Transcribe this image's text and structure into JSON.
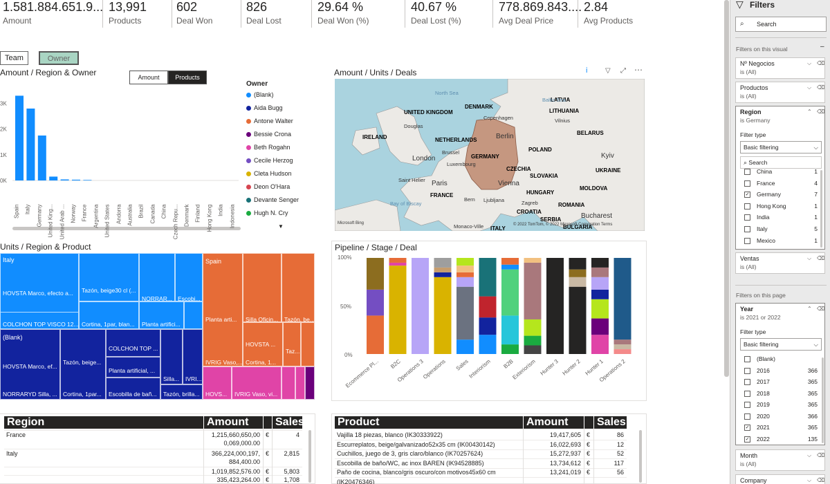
{
  "kpis": [
    {
      "value": "1.581.884.651.9...",
      "label": "Amount"
    },
    {
      "value": "13,991",
      "label": "Products"
    },
    {
      "value": "602",
      "label": "Deal Won"
    },
    {
      "value": "826",
      "label": "Deal Lost"
    },
    {
      "value": "29.64 %",
      "label": "Deal Won (%)"
    },
    {
      "value": "40.67 %",
      "label": "Deal Lost (%)"
    },
    {
      "value": "778.869.843....",
      "label": "Avg Deal Price"
    },
    {
      "value": "2.84",
      "label": "Avg Products"
    }
  ],
  "toggles": {
    "team": "Team",
    "owner": "Owner"
  },
  "bar_visual": {
    "title": "Amount / Region & Owner",
    "seg_amount": "Amount",
    "seg_products": "Products",
    "y_ticks": [
      "3K",
      "2K",
      "1K",
      "0K"
    ],
    "legend_title": "Owner",
    "legend": [
      {
        "name": "(Blank)",
        "color": "#118dff"
      },
      {
        "name": "Aida Bugg",
        "color": "#12239e"
      },
      {
        "name": "Antone Walter",
        "color": "#e66c37"
      },
      {
        "name": "Bessie Crona",
        "color": "#6b007b"
      },
      {
        "name": "Beth Rogahn",
        "color": "#e044a7"
      },
      {
        "name": "Cecile Herzog",
        "color": "#744ec2"
      },
      {
        "name": "Cleta Hudson",
        "color": "#d9b300"
      },
      {
        "name": "Deon O'Hara",
        "color": "#d64550"
      },
      {
        "name": "Devante Senger",
        "color": "#197278"
      },
      {
        "name": "Hugh N. Cry",
        "color": "#1aab40"
      }
    ]
  },
  "chart_data": {
    "type": "bar",
    "title": "Amount / Region & Owner",
    "xlabel": "",
    "ylabel": "",
    "ylim": [
      0,
      3500
    ],
    "categories": [
      "Spain",
      "Italy",
      "Germany",
      "United King...",
      "United Arab ...",
      "Norway",
      "France",
      "Argentina",
      "United States",
      "Andorra",
      "Australia",
      "Brazil",
      "Canada",
      "China",
      "Czech Repu...",
      "Denmark",
      "Finland",
      "Hong Kong",
      "India",
      "Indonesia"
    ],
    "values": [
      3300,
      2800,
      1750,
      150,
      40,
      30,
      20,
      0,
      0,
      0,
      0,
      0,
      0,
      0,
      0,
      0,
      0,
      0,
      0,
      0
    ]
  },
  "map_visual": {
    "title": "Amount / Units / Deals",
    "labels": [
      "North Sea",
      "UNITED KINGDOM",
      "Douglas",
      "DENMARK",
      "Copenhagen",
      "LATVIA",
      "LITHUANIA",
      "Vilnius",
      "IRELAND",
      "NETHERLANDS",
      "Berlin",
      "BELARUS",
      "Brussel",
      "Luxembourg",
      "GERMANY",
      "POLAND",
      "London",
      "Kyiv",
      "CZECHIA",
      "UKRAINE",
      "Saint Helier",
      "Paris",
      "SLOVAKIA",
      "Vienna",
      "MOLDOVA",
      "HUNGARY",
      "FRANCE",
      "Bern",
      "Ljubljana",
      "Zagreb",
      "ROMANIA",
      "Bay of Biscay",
      "CROATIA",
      "Bucharest",
      "SERBIA",
      "Monaco-Ville",
      "ITALY",
      "BULGARIA",
      "Baltic Sea"
    ],
    "copyright": "© 2022 TomTom, © 2022 Microsoft Corporation Terms",
    "brand": "Microsoft Bing"
  },
  "treemap": {
    "title": "Units / Region & Product",
    "italy": "Italy",
    "blank": "(Blank)",
    "spain": "Spain",
    "italy_items": [
      "HOVSTA Marco, efecto a...",
      "Tazón, beige30 cl (...",
      "NORRAR...",
      "Escobi...",
      "COLCHON TOP VISCO 12...",
      "Cortina, 1par, blan...",
      "Planta artifici..."
    ],
    "blank_items": [
      "HOVSTA Marco, ef...",
      "Tazón, beige...",
      "COLCHON TOP ...",
      "Planta artificial, ...",
      "Silla...",
      "IVRI...",
      "NORRARYD Silla, ...",
      "Cortina, 1par...",
      "Escobilla de bañ...",
      "Tazón, brilla..."
    ],
    "spain_items": [
      "Planta arti...",
      "Silla Oficin...",
      "Tazón, be...",
      "HOVSTA ...",
      "Taz...",
      "IVRIG Vaso,...",
      "Cortina, 1..."
    ],
    "pink_items": [
      "HOVS...",
      "IVRIG Vaso, vi..."
    ]
  },
  "pipeline": {
    "title": "Pipeline / Stage / Deal",
    "y_ticks": [
      "100%",
      "50%",
      "0%"
    ],
    "categories": [
      "Ecommerce Pl...",
      "B2C",
      "Operations 3",
      "Operations",
      "Sales",
      "Interiorism",
      "B2B",
      "Exteriorism",
      "Hunter 3",
      "Hunter 2",
      "Hunter 1",
      "Operations 2"
    ]
  },
  "region_table": {
    "headers": [
      "Region",
      "Amount",
      "Sales"
    ],
    "rows": [
      {
        "region": "France",
        "amount": "1,215,660,650,00",
        "amount2": "0,069,000.00",
        "cur": "€",
        "sales": "4"
      },
      {
        "region": "Italy",
        "amount": "366,224,000,197,",
        "amount2": "884,400.00",
        "cur": "€",
        "sales": "2,815"
      },
      {
        "region": "",
        "amount": "1,019,852,576.00",
        "amount2": "",
        "cur": "€",
        "sales": "5,803"
      },
      {
        "region": "",
        "amount": "335,423,264.00",
        "amount2": "",
        "cur": "€",
        "sales": "1,708"
      }
    ]
  },
  "product_table": {
    "headers": [
      "Product",
      "Amount",
      "Sales"
    ],
    "rows": [
      {
        "product": "Vajilla 18 piezas, blanco (IK30333922)",
        "amount": "19,417,605",
        "cur": "€",
        "sales": "86"
      },
      {
        "product": "Escurreplatos, beige/galvanizado52x35 cm (IK00430142)",
        "amount": "16,022,693",
        "cur": "€",
        "sales": "12"
      },
      {
        "product": "Cuchillos, juego de 3, gris claro/blanco (IK70257624)",
        "amount": "15,272,937",
        "cur": "€",
        "sales": "52"
      },
      {
        "product": "Escobilla de baño/WC, ac inox BAREN (IK94528885)",
        "amount": "13,734,612",
        "cur": "€",
        "sales": "117"
      },
      {
        "product": "Paño de cocina, blanco/gris oscuro/con motivos45x60 cm",
        "amount": "13,241,019",
        "cur": "€",
        "sales": "56"
      },
      {
        "product": "(IK20476346)",
        "amount": "",
        "cur": "",
        "sales": ""
      }
    ]
  },
  "filters": {
    "title": "Filters",
    "search": "Search",
    "on_visual": "Filters on this visual",
    "cards": [
      {
        "name": "Nº Negocios",
        "state": "is (All)"
      },
      {
        "name": "Productos",
        "state": "is (All)"
      }
    ],
    "region": {
      "name": "Region",
      "state": "is Germany",
      "filter_type_label": "Filter type",
      "filter_type": "Basic filtering",
      "search": "Search",
      "items": [
        {
          "label": "China",
          "count": "1",
          "checked": ""
        },
        {
          "label": "France",
          "count": "4",
          "checked": ""
        },
        {
          "label": "Germany",
          "count": "7",
          "checked": "✓"
        },
        {
          "label": "Hong Kong",
          "count": "1",
          "checked": ""
        },
        {
          "label": "India",
          "count": "1",
          "checked": ""
        },
        {
          "label": "Italy",
          "count": "5",
          "checked": ""
        },
        {
          "label": "Mexico",
          "count": "1",
          "checked": ""
        }
      ]
    },
    "ventas": {
      "name": "Ventas",
      "state": "is (All)"
    },
    "on_page": "Filters on this page",
    "year": {
      "name": "Year",
      "state": "is 2021 or 2022",
      "filter_type_label": "Filter type",
      "filter_type": "Basic filtering",
      "items": [
        {
          "label": "(Blank)",
          "count": "",
          "checked": ""
        },
        {
          "label": "2016",
          "count": "366",
          "checked": ""
        },
        {
          "label": "2017",
          "count": "365",
          "checked": ""
        },
        {
          "label": "2018",
          "count": "365",
          "checked": ""
        },
        {
          "label": "2019",
          "count": "365",
          "checked": ""
        },
        {
          "label": "2020",
          "count": "366",
          "checked": ""
        },
        {
          "label": "2021",
          "count": "365",
          "checked": "✓"
        },
        {
          "label": "2022",
          "count": "135",
          "checked": "✓"
        }
      ]
    },
    "month": {
      "name": "Month",
      "state": "is (All)"
    },
    "company": {
      "name": "Company"
    }
  }
}
